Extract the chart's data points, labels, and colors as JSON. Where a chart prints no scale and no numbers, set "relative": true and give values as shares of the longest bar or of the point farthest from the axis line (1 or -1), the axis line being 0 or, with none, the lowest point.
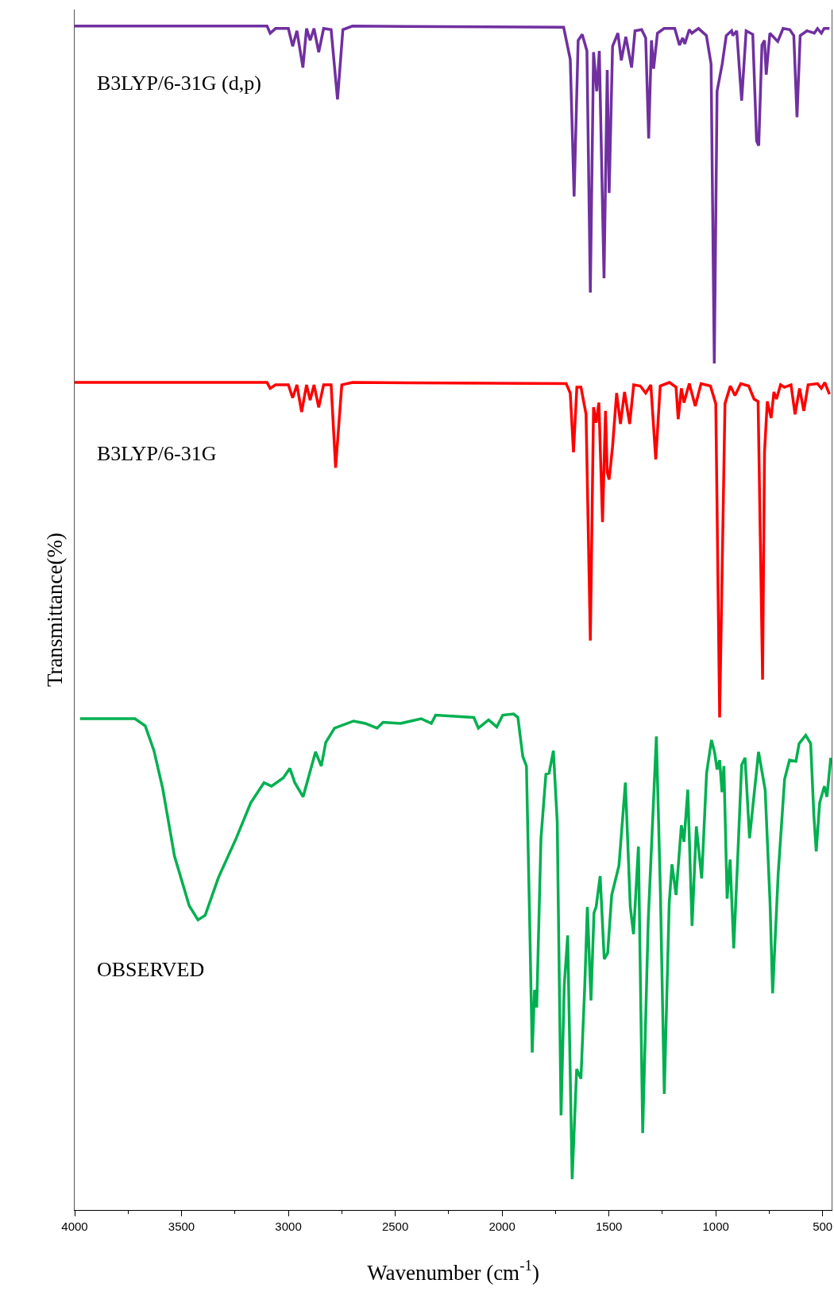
{
  "chart_data": {
    "type": "line",
    "relative": true,
    "xlabel": "Wavenumber (cm$^{-1}$)",
    "ylabel": "Transmittance(%)",
    "xlim": [
      4000,
      458
    ],
    "xticks": [
      4000,
      {
        "value": 3750,
        "label": null
      },
      3500,
      {
        "value": 3250,
        "label": null
      },
      3000,
      {
        "value": 2750,
        "label": null
      },
      2500,
      {
        "value": 2250,
        "label": null
      },
      2000,
      {
        "value": 1750,
        "label": null
      },
      1500,
      {
        "value": 1250,
        "label": null
      },
      1000,
      {
        "value": 750,
        "label": null
      },
      500
    ],
    "grid": false,
    "legend": false,
    "marker": "none",
    "line_style": "solid",
    "series": [
      {
        "name": "B3LYP/6-31G (d,p)",
        "color": "#7030a0",
        "x": [
          4000,
          3100,
          3085,
          3060,
          3000,
          2980,
          2960,
          2932,
          2915,
          2898,
          2880,
          2858,
          2835,
          2800,
          2770,
          2745,
          2700,
          1712,
          1681,
          1663,
          1644,
          1625,
          1603,
          1587,
          1572,
          1557,
          1545,
          1523,
          1508,
          1499,
          1483,
          1458,
          1442,
          1421,
          1394,
          1378,
          1347,
          1328,
          1314,
          1301,
          1291,
          1273,
          1242,
          1192,
          1170,
          1155,
          1145,
          1124,
          1112,
          1081,
          1044,
          1022,
          1007,
          994,
          970,
          951,
          926,
          920,
          902,
          879,
          858,
          827,
          809,
          799,
          784,
          772,
          764,
          747,
          710,
          685,
          654,
          635,
          620,
          605,
          573,
          539,
          524,
          506,
          493,
          468
        ],
        "values": [
          1.0,
          1.0,
          0.994,
          0.998,
          0.998,
          0.983,
          0.996,
          0.965,
          0.998,
          0.988,
          0.998,
          0.978,
          0.998,
          0.997,
          0.938,
          0.997,
          1.0,
          0.999,
          0.972,
          0.856,
          0.988,
          0.993,
          0.979,
          0.775,
          0.978,
          0.945,
          0.979,
          0.787,
          0.963,
          0.859,
          0.983,
          0.994,
          0.971,
          0.991,
          0.965,
          0.996,
          0.997,
          0.99,
          0.905,
          0.988,
          0.964,
          0.994,
          0.998,
          0.998,
          0.984,
          0.99,
          0.985,
          0.997,
          0.994,
          0.998,
          0.992,
          0.968,
          0.715,
          0.945,
          0.968,
          0.992,
          0.996,
          0.992,
          0.996,
          0.937,
          0.996,
          0.993,
          0.903,
          0.899,
          0.984,
          0.988,
          0.959,
          0.994,
          0.987,
          0.998,
          0.997,
          0.992,
          0.923,
          0.992,
          0.996,
          0.994,
          0.998,
          0.994,
          0.998,
          0.998
        ]
      },
      {
        "name": "B3LYP/6-31G",
        "color": "#ff0000",
        "x": [
          4000,
          3100,
          3085,
          3060,
          3000,
          2980,
          2960,
          2938,
          2915,
          2898,
          2880,
          2858,
          2835,
          2800,
          2779,
          2750,
          2700,
          1700,
          1681,
          1666,
          1650,
          1631,
          1607,
          1587,
          1572,
          1560,
          1547,
          1530,
          1516,
          1508,
          1499,
          1483,
          1464,
          1446,
          1427,
          1403,
          1384,
          1353,
          1328,
          1304,
          1281,
          1260,
          1217,
          1186,
          1176,
          1161,
          1149,
          1124,
          1096,
          1069,
          1025,
          1000,
          982,
          957,
          932,
          910,
          883,
          846,
          821,
          802,
          781,
          772,
          759,
          741,
          728,
          716,
          697,
          679,
          648,
          629,
          608,
          588,
          568,
          524,
          506,
          490,
          468
        ],
        "values": [
          0.699,
          0.699,
          0.694,
          0.697,
          0.697,
          0.686,
          0.697,
          0.674,
          0.697,
          0.684,
          0.697,
          0.678,
          0.697,
          0.697,
          0.627,
          0.697,
          0.699,
          0.698,
          0.69,
          0.64,
          0.695,
          0.695,
          0.672,
          0.481,
          0.678,
          0.665,
          0.682,
          0.581,
          0.675,
          0.623,
          0.617,
          0.645,
          0.69,
          0.664,
          0.691,
          0.664,
          0.697,
          0.696,
          0.69,
          0.697,
          0.634,
          0.696,
          0.699,
          0.695,
          0.668,
          0.694,
          0.682,
          0.698,
          0.679,
          0.698,
          0.696,
          0.681,
          0.416,
          0.681,
          0.696,
          0.688,
          0.698,
          0.696,
          0.685,
          0.683,
          0.448,
          0.64,
          0.683,
          0.669,
          0.691,
          0.685,
          0.697,
          0.695,
          0.697,
          0.672,
          0.694,
          0.675,
          0.697,
          0.698,
          0.694,
          0.699,
          0.689
        ]
      },
      {
        "name": "OBSERVED",
        "color": "#00b050",
        "x": [
          3975,
          3718,
          3670,
          3629,
          3588,
          3533,
          3464,
          3423,
          3389,
          3327,
          3244,
          3176,
          3114,
          3079,
          3024,
          2993,
          2970,
          2931,
          2873,
          2846,
          2825,
          2784,
          2695,
          2640,
          2585,
          2557,
          2475,
          2379,
          2331,
          2311,
          2132,
          2111,
          2063,
          2025,
          1997,
          1946,
          1926,
          1903,
          1886,
          1871,
          1859,
          1848,
          1838,
          1818,
          1795,
          1780,
          1760,
          1742,
          1724,
          1709,
          1693,
          1672,
          1651,
          1631,
          1613,
          1601,
          1584,
          1570,
          1560,
          1541,
          1522,
          1506,
          1487,
          1453,
          1423,
          1400,
          1385,
          1362,
          1342,
          1316,
          1278,
          1259,
          1241,
          1218,
          1205,
          1186,
          1161,
          1149,
          1131,
          1111,
          1091,
          1066,
          1043,
          1020,
          1005,
          994,
          982,
          971,
          962,
          947,
          933,
          916,
          898,
          879,
          863,
          842,
          800,
          769,
          746,
          734,
          708,
          678,
          655,
          625,
          610,
          579,
          556,
          541,
          530,
          514,
          492,
          480,
          462
        ],
        "values": [
          0.415,
          0.415,
          0.409,
          0.388,
          0.356,
          0.299,
          0.257,
          0.245,
          0.249,
          0.281,
          0.314,
          0.344,
          0.361,
          0.358,
          0.365,
          0.373,
          0.361,
          0.349,
          0.387,
          0.375,
          0.395,
          0.407,
          0.413,
          0.411,
          0.407,
          0.412,
          0.411,
          0.415,
          0.411,
          0.418,
          0.416,
          0.407,
          0.414,
          0.408,
          0.418,
          0.419,
          0.416,
          0.383,
          0.375,
          0.245,
          0.133,
          0.186,
          0.171,
          0.314,
          0.368,
          0.369,
          0.388,
          0.328,
          0.08,
          0.19,
          0.232,
          0.026,
          0.119,
          0.111,
          0.19,
          0.256,
          0.177,
          0.251,
          0.256,
          0.282,
          0.212,
          0.217,
          0.266,
          0.291,
          0.361,
          0.256,
          0.233,
          0.307,
          0.065,
          0.245,
          0.4,
          0.267,
          0.098,
          0.259,
          0.292,
          0.266,
          0.325,
          0.311,
          0.355,
          0.24,
          0.324,
          0.28,
          0.369,
          0.397,
          0.386,
          0.372,
          0.38,
          0.353,
          0.375,
          0.263,
          0.296,
          0.221,
          0.295,
          0.376,
          0.382,
          0.314,
          0.387,
          0.355,
          0.259,
          0.183,
          0.284,
          0.364,
          0.38,
          0.379,
          0.394,
          0.401,
          0.394,
          0.333,
          0.303,
          0.344,
          0.358,
          0.349,
          0.382
        ]
      }
    ]
  }
}
